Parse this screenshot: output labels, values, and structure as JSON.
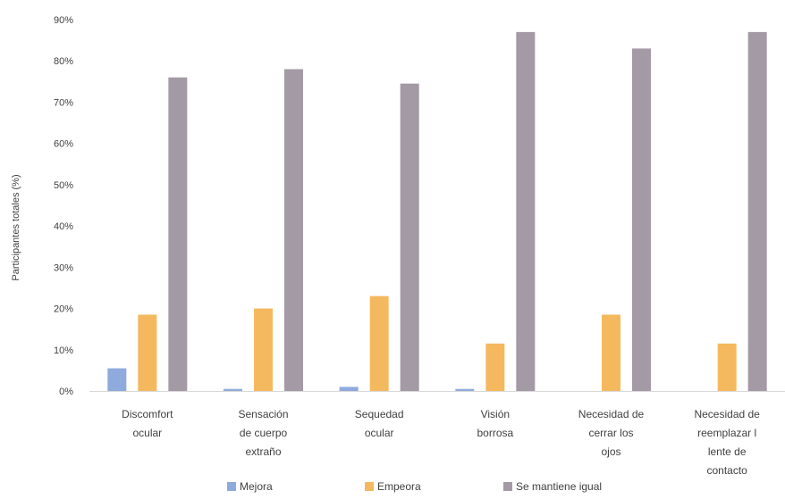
{
  "chart_data": {
    "type": "bar",
    "ylabel": "Participantes totales (%)",
    "xlabel": "",
    "ylim": [
      0,
      90
    ],
    "yticks": [
      "0%",
      "10%",
      "20%",
      "30%",
      "40%",
      "50%",
      "60%",
      "70%",
      "80%",
      "90%"
    ],
    "grid": false,
    "legend_position": "bottom",
    "categories": [
      [
        "Discomfort",
        "ocular"
      ],
      [
        "Sensación",
        "de cuerpo",
        "extraño"
      ],
      [
        "Sequedad",
        "ocular"
      ],
      [
        "Visión",
        "borrosa"
      ],
      [
        "Necesidad de",
        "cerrar los",
        "ojos"
      ],
      [
        "Necesidad de",
        "reemplazar l",
        "lente de",
        "contacto"
      ]
    ],
    "series": [
      {
        "name": "Mejora",
        "color": "#8faadc",
        "values": [
          5.5,
          0.5,
          1,
          0.5,
          0,
          0
        ]
      },
      {
        "name": "Empeora",
        "color": "#f4b95e",
        "values": [
          18.5,
          20,
          23,
          11.5,
          18.5,
          11.5
        ]
      },
      {
        "name": "Se mantiene igual",
        "color": "#a39aa5",
        "values": [
          76,
          78,
          74.5,
          87,
          83,
          87
        ]
      }
    ]
  }
}
